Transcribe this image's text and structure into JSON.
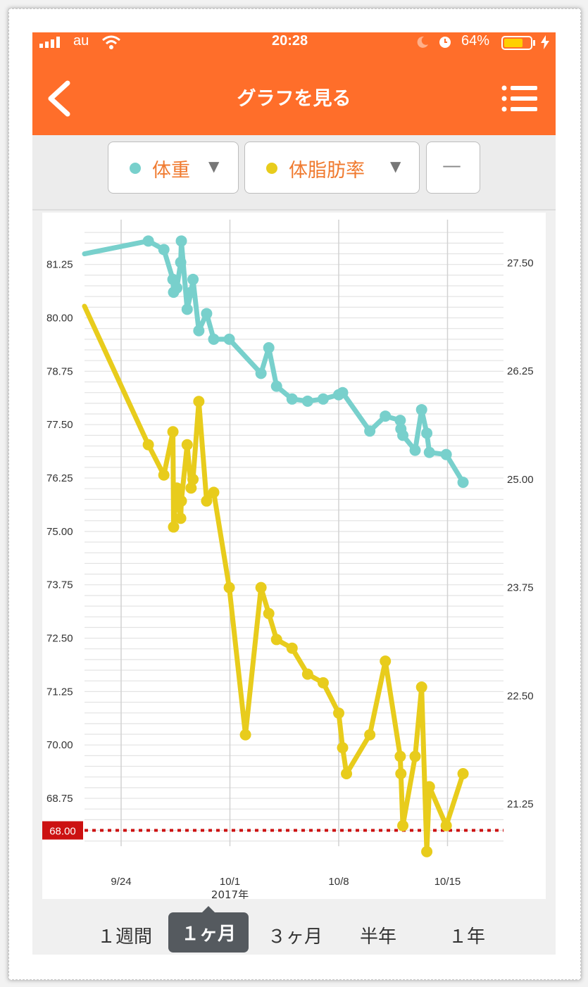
{
  "status_bar": {
    "carrier": "au",
    "time": "20:28",
    "battery": "64%"
  },
  "header": {
    "title": "グラフを見る"
  },
  "icons": {
    "back": "chevron-left-icon",
    "menu": "list-menu-icon",
    "signal": "signal-bars-icon",
    "wifi": "wifi-icon",
    "moon": "moon-icon",
    "alarm": "alarm-icon",
    "battery": "battery-icon",
    "charging": "bolt-icon"
  },
  "selectors": [
    {
      "label": "体重",
      "color": "#78d0cc"
    },
    {
      "label": "体脂肪率",
      "color": "#e8cc1c"
    },
    {
      "label": "—"
    }
  ],
  "chart": {
    "target_label": "68.00",
    "target_color": "#cc1111",
    "year_label": "2017年"
  },
  "periods": [
    "１週間",
    "１ヶ月",
    "３ヶ月",
    "半年",
    "１年"
  ],
  "active_period": "１ヶ月",
  "chart_data": {
    "type": "line",
    "left_axis": {
      "ylim": [
        67.3,
        82.3
      ],
      "ticks": [
        "68.75",
        "70.00",
        "71.25",
        "72.50",
        "73.75",
        "75.00",
        "76.25",
        "77.50",
        "78.75",
        "80.00",
        "81.25"
      ]
    },
    "right_axis": {
      "ylim": [
        20.6,
        28.0
      ],
      "ticks": [
        "21.25",
        "22.50",
        "23.75",
        "25.00",
        "26.25",
        "27.50"
      ]
    },
    "x_axis": {
      "ticks": [
        "9/24",
        "10/1",
        "10/8",
        "10/15"
      ]
    },
    "grid": true,
    "target_line": 68.0,
    "series": [
      {
        "name": "体重",
        "axis": "left",
        "color": "#78d0cc",
        "points": [
          [
            "9/20 12:00",
            81.5
          ],
          [
            "9/25 18:00",
            81.8
          ],
          [
            "9/26 18:00",
            81.6
          ],
          [
            "9/27 08:00",
            80.9
          ],
          [
            "9/27 09:00",
            80.6
          ],
          [
            "9/27 14:00",
            80.7
          ],
          [
            "9/27 20:00",
            81.3
          ],
          [
            "9/27 21:00",
            81.8
          ],
          [
            "9/28 06:00",
            80.2
          ],
          [
            "9/28 12:00",
            80.6
          ],
          [
            "9/28 15:00",
            80.9
          ],
          [
            "9/29 00:00",
            79.7
          ],
          [
            "9/29 12:00",
            80.1
          ],
          [
            "9/29 23:00",
            79.5
          ],
          [
            "9/30 23:00",
            79.5
          ],
          [
            "10/3 00:00",
            78.7
          ],
          [
            "10/3 12:00",
            79.3
          ],
          [
            "10/4 00:00",
            78.4
          ],
          [
            "10/5 00:00",
            78.1
          ],
          [
            "10/6 00:00",
            78.05
          ],
          [
            "10/7 00:00",
            78.1
          ],
          [
            "10/8 00:00",
            78.2
          ],
          [
            "10/8 06:00",
            78.25
          ],
          [
            "10/10 00:00",
            77.35
          ],
          [
            "10/11 00:00",
            77.7
          ],
          [
            "10/11 23:00",
            77.6
          ],
          [
            "10/12 00:00",
            77.4
          ],
          [
            "10/12 03:00",
            77.25
          ],
          [
            "10/12 22:00",
            76.9
          ],
          [
            "10/13 08:00",
            77.85
          ],
          [
            "10/13 16:00",
            77.3
          ],
          [
            "10/13 20:00",
            76.85
          ],
          [
            "10/14 22:00",
            76.8
          ],
          [
            "10/16 00:00",
            76.15
          ]
        ]
      },
      {
        "name": "体脂肪率",
        "axis": "right",
        "color": "#e8cc1c",
        "points": [
          [
            "9/20 12:00",
            27.0
          ],
          [
            "9/25 18:00",
            25.4
          ],
          [
            "9/26 18:00",
            25.05
          ],
          [
            "9/27 08:00",
            25.55
          ],
          [
            "9/27 09:00",
            24.45
          ],
          [
            "9/27 14:00",
            24.9
          ],
          [
            "9/27 20:00",
            24.55
          ],
          [
            "9/27 21:00",
            24.75
          ],
          [
            "9/28 06:00",
            25.4
          ],
          [
            "9/28 12:00",
            24.9
          ],
          [
            "9/28 15:00",
            25.0
          ],
          [
            "9/29 00:00",
            25.9
          ],
          [
            "9/29 12:00",
            24.75
          ],
          [
            "9/29 23:00",
            24.85
          ],
          [
            "9/30 23:00",
            23.75
          ],
          [
            "10/2 00:00",
            22.05
          ],
          [
            "10/3 00:00",
            23.75
          ],
          [
            "10/3 12:00",
            23.45
          ],
          [
            "10/4 00:00",
            23.15
          ],
          [
            "10/5 00:00",
            23.05
          ],
          [
            "10/6 00:00",
            22.75
          ],
          [
            "10/7 00:00",
            22.65
          ],
          [
            "10/8 00:00",
            22.3
          ],
          [
            "10/8 06:00",
            21.9
          ],
          [
            "10/8 12:00",
            21.6
          ],
          [
            "10/10 00:00",
            22.05
          ],
          [
            "10/11 00:00",
            22.9
          ],
          [
            "10/11 23:00",
            21.8
          ],
          [
            "10/12 00:00",
            21.6
          ],
          [
            "10/12 03:00",
            21.0
          ],
          [
            "10/12 22:00",
            21.8
          ],
          [
            "10/13 08:00",
            22.6
          ],
          [
            "10/13 16:00",
            20.7
          ],
          [
            "10/13 20:00",
            21.45
          ],
          [
            "10/14 22:00",
            21.0
          ],
          [
            "10/16 00:00",
            21.6
          ]
        ]
      }
    ]
  }
}
